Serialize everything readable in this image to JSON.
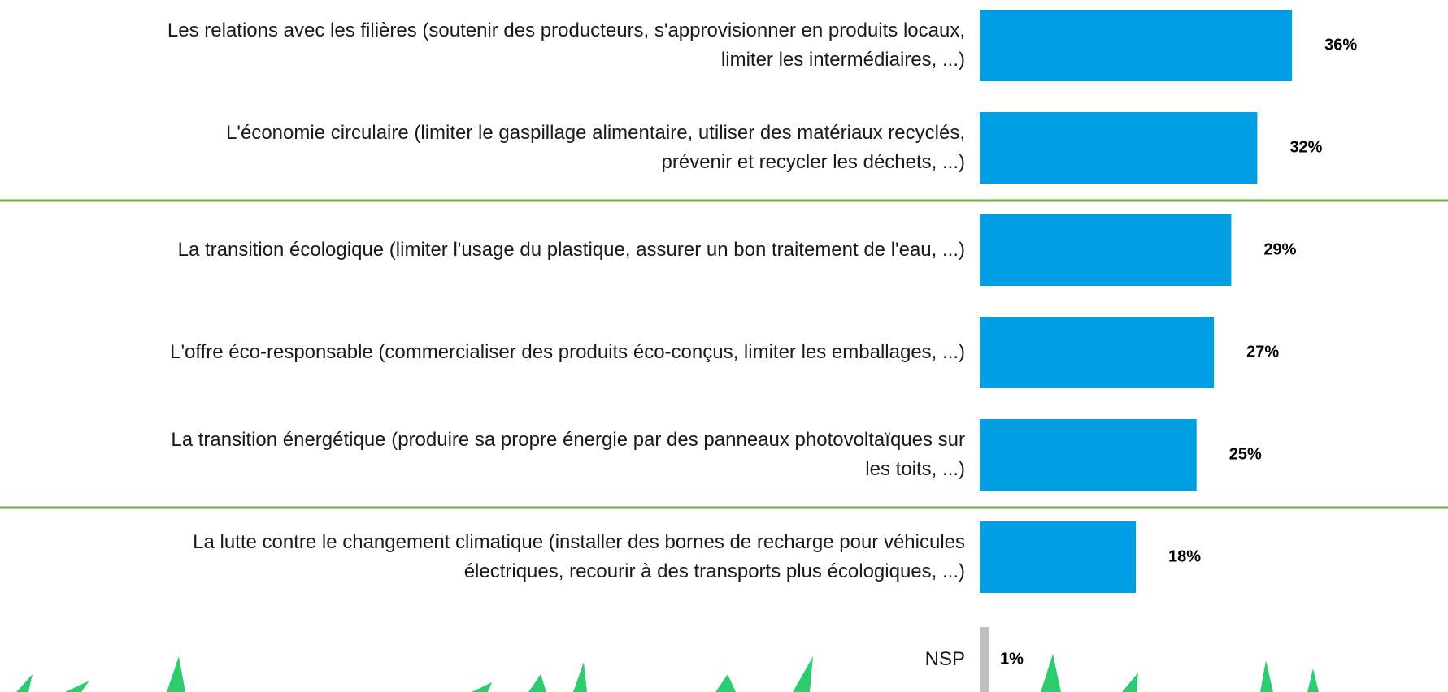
{
  "chart_data": {
    "type": "bar",
    "orientation": "horizontal",
    "categories": [
      "Les relations avec les filières (soutenir des producteurs, s'approvisionner en produits locaux, limiter les intermédiaires, ...)",
      "L'économie circulaire (limiter le gaspillage alimentaire, utiliser des matériaux recyclés, prévenir et recycler les déchets, ...)",
      "La transition écologique (limiter l'usage du plastique, assurer un bon traitement de l'eau, ...)",
      "L'offre éco-responsable (commercialiser des produits éco-conçus, limiter les emballages, ...)",
      "La transition énergétique (produire sa propre énergie par des panneaux photovoltaïques sur les toits, ...)",
      "La lutte contre le changement climatique (installer des bornes de recharge pour véhicules électriques, recourir à des transports plus écologiques, ...)",
      "NSP"
    ],
    "values": [
      36,
      32,
      29,
      27,
      25,
      18,
      1
    ],
    "value_labels": [
      "36%",
      "32%",
      "29%",
      "27%",
      "25%",
      "18%",
      "1%"
    ],
    "colors": [
      "#009fe3",
      "#009fe3",
      "#009fe3",
      "#009fe3",
      "#009fe3",
      "#009fe3",
      "#bfbfbf"
    ]
  }
}
